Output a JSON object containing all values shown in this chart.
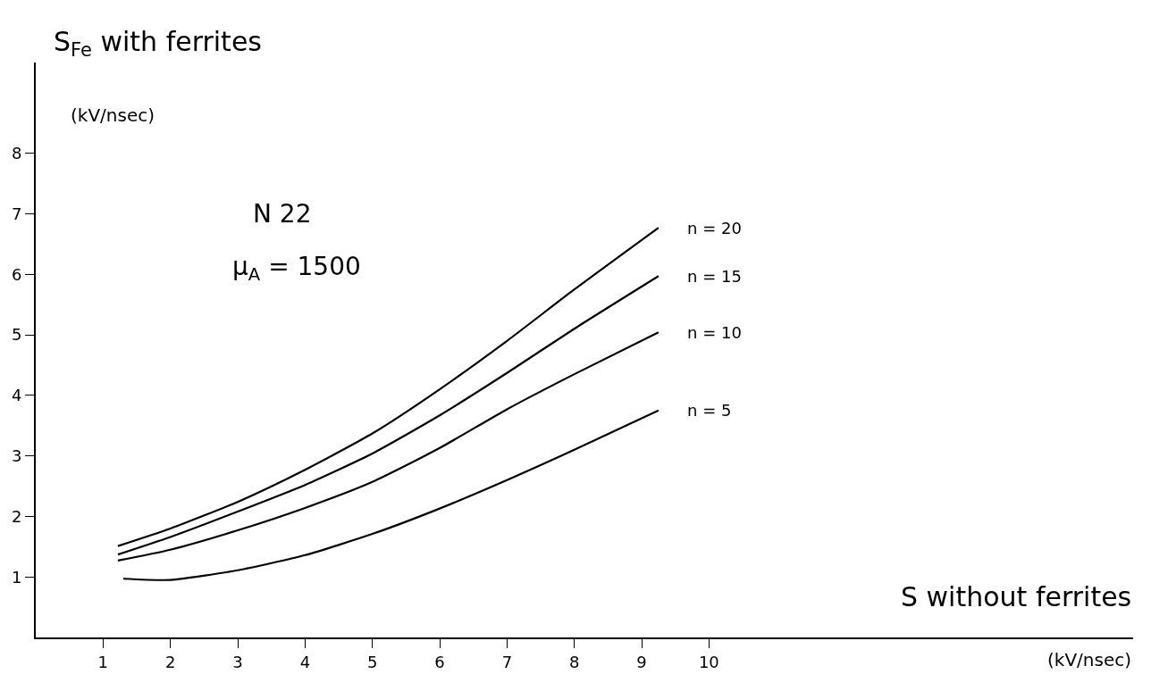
{
  "chart_data": {
    "type": "line",
    "xlabel": "S without ferrites",
    "ylabel": "S$_{Fe}$ with ferrites",
    "xlim": [
      0,
      16.3
    ],
    "ylim": [
      0,
      9.5
    ],
    "xticks": [
      1,
      2,
      3,
      4,
      5,
      6,
      7,
      8,
      9,
      10
    ],
    "yticks": [
      1,
      2,
      3,
      4,
      5,
      6,
      7,
      8
    ],
    "legend": false,
    "marker": "none",
    "line_style": "solid",
    "series": [
      {
        "name": "n = 20",
        "color": "#000000",
        "x": [
          1.22,
          2,
          3,
          4,
          5,
          6,
          7,
          8,
          9.25
        ],
        "values": [
          1.51,
          1.8,
          2.24,
          2.77,
          3.37,
          4.1,
          4.9,
          5.75,
          6.77
        ]
      },
      {
        "name": "n = 15",
        "color": "#000000",
        "x": [
          1.22,
          2,
          3,
          4,
          5,
          6,
          7,
          8,
          9.25
        ],
        "values": [
          1.37,
          1.66,
          2.08,
          2.52,
          3.04,
          3.67,
          4.37,
          5.1,
          5.97
        ]
      },
      {
        "name": "n = 10",
        "color": "#000000",
        "x": [
          1.22,
          2,
          3,
          4,
          5,
          6,
          7,
          8,
          9.25
        ],
        "values": [
          1.27,
          1.45,
          1.77,
          2.14,
          2.57,
          3.13,
          3.77,
          4.35,
          5.04
        ]
      },
      {
        "name": "n = 5",
        "color": "#000000",
        "x": [
          1.3,
          2,
          3,
          4,
          5,
          6,
          7,
          8,
          9.25
        ],
        "values": [
          0.97,
          0.95,
          1.11,
          1.36,
          1.71,
          2.13,
          2.6,
          3.1,
          3.75
        ]
      }
    ],
    "annotations": [
      "(kV/nsec)",
      "(kV/nsec)",
      "N 22",
      "μ$_{A}$ = 1500"
    ]
  }
}
